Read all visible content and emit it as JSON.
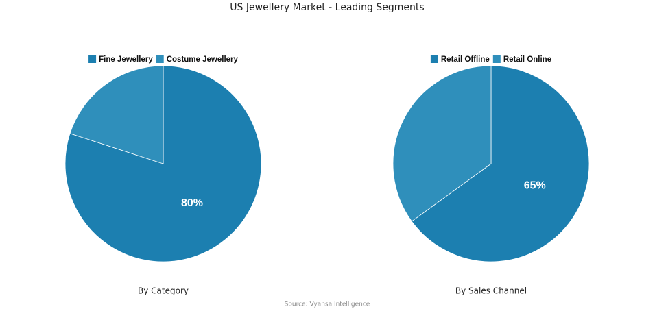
{
  "title": "US Jewellery Market - Leading Segments",
  "source": "Source: Vyansa Intelligence",
  "chart_data": [
    {
      "type": "pie",
      "title": "By Category",
      "categories": [
        "Fine Jewellery",
        "Costume Jewellery"
      ],
      "values": [
        80,
        20
      ],
      "value_labels": [
        "80%",
        null
      ],
      "colors": [
        "#1c7fb0",
        "#2f8fbb"
      ]
    },
    {
      "type": "pie",
      "title": "By Sales Channel",
      "categories": [
        "Retail Offline",
        "Retail Online"
      ],
      "values": [
        65,
        35
      ],
      "value_labels": [
        "65%",
        null
      ],
      "colors": [
        "#1c7fb0",
        "#2f8fbb"
      ]
    }
  ]
}
